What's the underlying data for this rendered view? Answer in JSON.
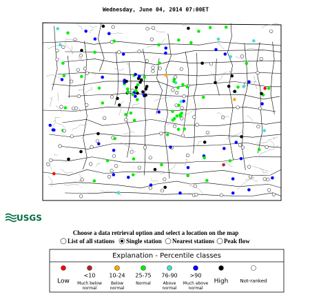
{
  "header": {
    "timestamp": "Wednesday, June 04, 2014 07:00ET"
  },
  "logo": "USGS",
  "prompt": "Choose a data retrieval option and select a location on the map",
  "options": [
    {
      "label": "List of all stations",
      "selected": false
    },
    {
      "label": "Single station",
      "selected": true
    },
    {
      "label": "Nearest stations",
      "selected": false
    },
    {
      "label": "Peak flow",
      "selected": false
    }
  ],
  "legend": {
    "title": "Explanation - Percentile classes",
    "classes": [
      {
        "label": "Low",
        "color": "#ff0000"
      },
      {
        "range": "<10",
        "label": "Much below normal",
        "color": "#b22222"
      },
      {
        "range": "10-24",
        "label": "Below normal",
        "color": "#ffa500"
      },
      {
        "range": "25-75",
        "label": "Normal",
        "color": "#00ee00"
      },
      {
        "range": "76-90",
        "label": "Above normal",
        "color": "#40e0d0"
      },
      {
        "range": ">90",
        "label": "Much above normal",
        "color": "#0000ff"
      },
      {
        "label": "High",
        "color": "#000000"
      },
      {
        "label": "Not-ranked",
        "color": "#ffffff"
      }
    ]
  }
}
